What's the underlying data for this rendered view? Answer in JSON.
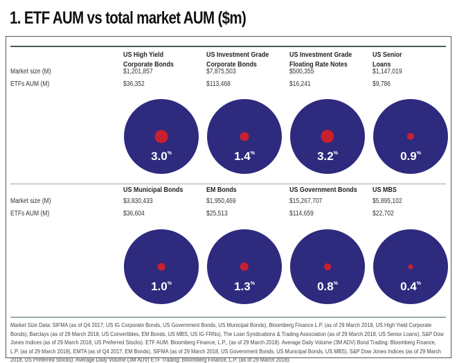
{
  "title": "1. ETF AUM vs total market AUM ($m)",
  "row_labels": {
    "market_size": "Market size (M)",
    "etf_aum": "ETFs AUM (M)"
  },
  "colors": {
    "circle": "#2e2a7e",
    "dot": "#c8202f"
  },
  "chart_data": {
    "type": "proportional-circles",
    "title": "1. ETF AUM vs total market AUM ($m)",
    "units": "$m",
    "segments": [
      {
        "name_line1": "US High Yield",
        "name_line2": "Corporate Bonds",
        "market_size": "$1,201,857",
        "etf_aum": "$36,352",
        "pct": "3.0",
        "share": 3.0
      },
      {
        "name_line1": "US Investment Grade",
        "name_line2": "Corporate Bonds",
        "market_size": "$7,875,503",
        "etf_aum": "$113,468",
        "pct": "1.4",
        "share": 1.4
      },
      {
        "name_line1": "US Investment Grade",
        "name_line2": "Floating Rate Notes",
        "market_size": "$500,355",
        "etf_aum": "$16,241",
        "pct": "3.2",
        "share": 3.2
      },
      {
        "name_line1": "US Senior",
        "name_line2": "Loans",
        "market_size": "$1,147,019",
        "etf_aum": "$9,786",
        "pct": "0.9",
        "share": 0.9
      },
      {
        "name_line1": "US Municipal Bonds",
        "name_line2": "",
        "market_size": "$3,830,433",
        "etf_aum": "$36,604",
        "pct": "1.0",
        "share": 1.0
      },
      {
        "name_line1": "EM Bonds",
        "name_line2": "",
        "market_size": "$1,950,469",
        "etf_aum": "$25,513",
        "pct": "1.3",
        "share": 1.3
      },
      {
        "name_line1": "US Government Bonds",
        "name_line2": "",
        "market_size": "$15,267,707",
        "etf_aum": "$114,659",
        "pct": "0.8",
        "share": 0.8
      },
      {
        "name_line1": "US MBS",
        "name_line2": "",
        "market_size": "$5,895,102",
        "etf_aum": "$22,702",
        "pct": "0.4",
        "share": 0.4
      }
    ],
    "pct_symbol": "%"
  },
  "footnote": "Market Size Data: SIFMA (as of Q4 2017; US IG Corporate Bonds, US Government Bonds, US Municipal Bonds), Bloomberg Finance L.P. (as of 29 March 2018, US High Yield Corporate Bonds), Barclays (as of 29 March 2018, US Convertibles, EM Bonds, US MBS, US IG FRNs), The Loan Syndications & Trading Association (as of 29 March 2018, US Senior Loans), S&P Dow Jones Indices (as of 29 March 2018, US Preferred Stocks). ETF AUM: Bloomberg Finance, L.P., (as of 29 March 2018). Average Daily Volume (3M ADV) Bond Trading: Bloomberg Finance, L.P. (as of 29 March 2018), EMTA (as of Q4 2017; EM Bonds), SIFMA (as of 29 March 2018, US Government Bonds, US Municipal Bonds, US MBS), S&P Dow Jones Indices (as of 29 March 2018, US Preferred Stocks). Average Daily Volume (3M ADV) ETF Trading: Bloomberg Finance, L.P. (as of 29 March 2018)."
}
